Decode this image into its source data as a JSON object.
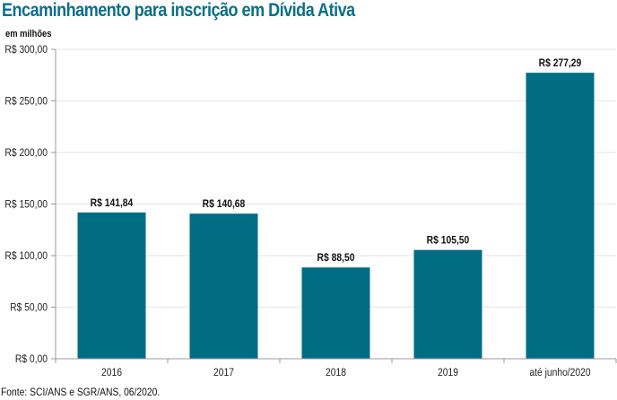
{
  "header": {
    "title": "Encaminhamento para inscrição em Dívida Ativa",
    "unit_label": "em milhões"
  },
  "footer": {
    "source": "Fonte: SCI/ANS e SGR/ANS, 06/2020."
  },
  "colors": {
    "title": "#0b6f88",
    "bar": "#006d84",
    "gridline": "#e6e6e6",
    "axis": "#999999"
  },
  "chart_data": {
    "type": "bar",
    "title": "Encaminhamento para inscrição em Dívida Ativa",
    "xlabel": "",
    "ylabel": "em milhões",
    "categories": [
      "2016",
      "2017",
      "2018",
      "2019",
      "até junho/2020"
    ],
    "values": [
      141.84,
      140.68,
      88.5,
      105.5,
      277.29
    ],
    "data_labels": [
      "R$ 141,84",
      "R$ 140,68",
      "R$ 88,50",
      "R$ 105,50",
      "R$ 277,29"
    ],
    "ylim": [
      0,
      300
    ],
    "yticks": [
      0,
      50,
      100,
      150,
      200,
      250,
      300
    ],
    "ytick_labels": [
      "R$ 0,00",
      "R$ 50,00",
      "R$ 100,00",
      "R$ 150,00",
      "R$ 200,00",
      "R$ 250,00",
      "R$ 300,00"
    ],
    "grid": true,
    "legend": "none"
  }
}
